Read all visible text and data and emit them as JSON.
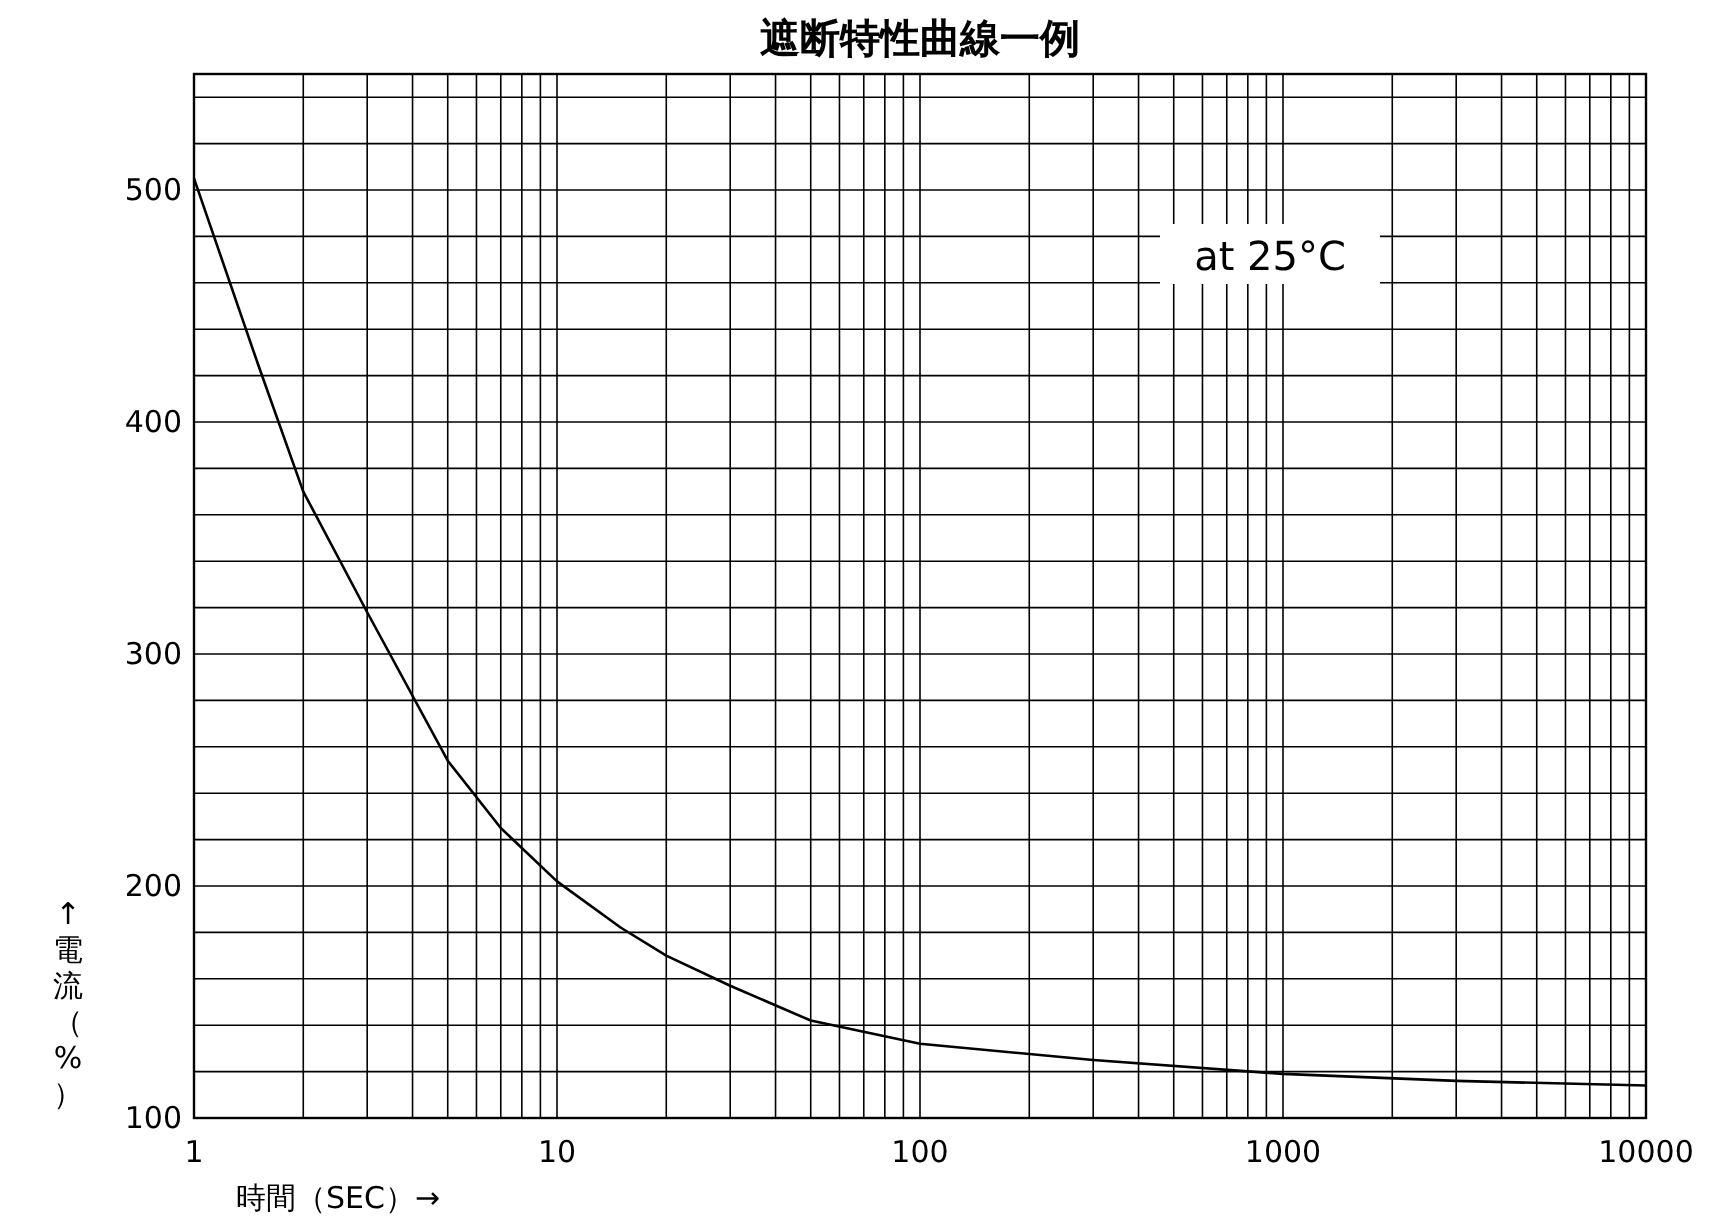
{
  "chart_data": {
    "type": "line",
    "title": "遮断特性曲線一例",
    "xlabel": "時間（SEC）→",
    "ylabel": "↑電流（%）",
    "annotations": [
      "at 25°C"
    ],
    "log": "x",
    "grid": true,
    "xlim": [
      1,
      10000
    ],
    "ylim": [
      100,
      550
    ],
    "xticks": [
      1,
      {
        "value": 2,
        "label": null
      },
      {
        "value": 3,
        "label": null
      },
      {
        "value": 4,
        "label": null
      },
      {
        "value": 5,
        "label": null
      },
      {
        "value": 6,
        "label": null
      },
      {
        "value": 7,
        "label": null
      },
      {
        "value": 8,
        "label": null
      },
      {
        "value": 9,
        "label": null
      },
      10,
      {
        "value": 20,
        "label": null
      },
      {
        "value": 30,
        "label": null
      },
      {
        "value": 40,
        "label": null
      },
      {
        "value": 50,
        "label": null
      },
      {
        "value": 60,
        "label": null
      },
      {
        "value": 70,
        "label": null
      },
      {
        "value": 80,
        "label": null
      },
      {
        "value": 90,
        "label": null
      },
      100,
      {
        "value": 200,
        "label": null
      },
      {
        "value": 300,
        "label": null
      },
      {
        "value": 400,
        "label": null
      },
      {
        "value": 500,
        "label": null
      },
      {
        "value": 600,
        "label": null
      },
      {
        "value": 700,
        "label": null
      },
      {
        "value": 800,
        "label": null
      },
      {
        "value": 900,
        "label": null
      },
      1000,
      {
        "value": 2000,
        "label": null
      },
      {
        "value": 3000,
        "label": null
      },
      {
        "value": 4000,
        "label": null
      },
      {
        "value": 5000,
        "label": null
      },
      {
        "value": 6000,
        "label": null
      },
      {
        "value": 7000,
        "label": null
      },
      {
        "value": 8000,
        "label": null
      },
      {
        "value": 9000,
        "label": null
      },
      10000
    ],
    "yticks": [
      100,
      {
        "value": 120,
        "label": null
      },
      {
        "value": 140,
        "label": null
      },
      {
        "value": 160,
        "label": null
      },
      {
        "value": 180,
        "label": null
      },
      200,
      {
        "value": 220,
        "label": null
      },
      {
        "value": 240,
        "label": null
      },
      {
        "value": 260,
        "label": null
      },
      {
        "value": 280,
        "label": null
      },
      300,
      {
        "value": 320,
        "label": null
      },
      {
        "value": 340,
        "label": null
      },
      {
        "value": 360,
        "label": null
      },
      {
        "value": 380,
        "label": null
      },
      400,
      {
        "value": 420,
        "label": null
      },
      {
        "value": 440,
        "label": null
      },
      {
        "value": 460,
        "label": null
      },
      {
        "value": 480,
        "label": null
      },
      500,
      {
        "value": 520,
        "label": null
      },
      {
        "value": 540,
        "label": null
      }
    ],
    "series": [
      {
        "color": "#000000",
        "x": [
          1,
          1.5,
          2,
          3,
          5,
          7,
          10,
          15,
          20,
          30,
          50,
          100,
          300,
          1000,
          3000,
          10000
        ],
        "values": [
          505,
          425,
          370,
          318,
          254,
          225,
          202,
          182,
          170,
          157,
          142,
          132,
          125,
          119,
          116,
          114
        ]
      }
    ]
  }
}
